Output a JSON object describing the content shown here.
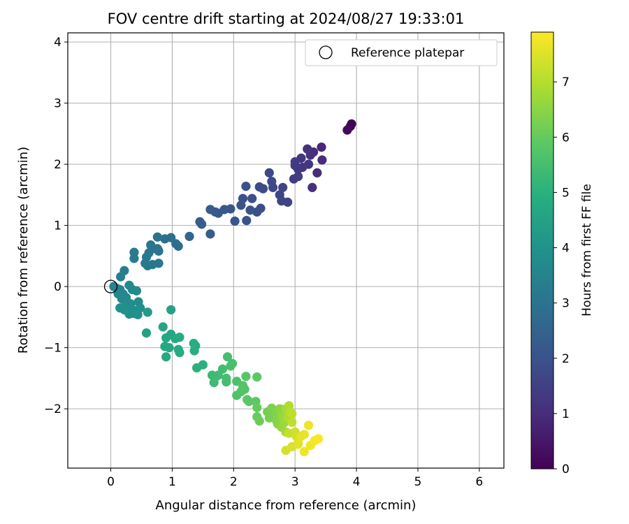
{
  "chart_data": {
    "type": "scatter",
    "title": "FOV centre drift starting at 2024/08/27 19:33:01",
    "xlabel": "Angular distance from reference (arcmin)",
    "ylabel": "Rotation from reference (arcmin)",
    "xlim": [
      -0.7,
      6.4
    ],
    "ylim": [
      -2.97,
      4.15
    ],
    "xticks": [
      0,
      1,
      2,
      3,
      4,
      5,
      6
    ],
    "yticks": [
      -2,
      -1,
      0,
      1,
      2,
      3,
      4
    ],
    "grid": true,
    "legend": {
      "placement": "top-right",
      "entries": [
        "Reference platepar"
      ]
    },
    "colorbar": {
      "label": "Hours from first FF file",
      "range": [
        0,
        7.9
      ],
      "ticks": [
        0,
        1,
        2,
        3,
        4,
        5,
        6,
        7
      ],
      "colormap": "viridis"
    },
    "reference_point": {
      "x": 0,
      "y": 0,
      "label": "Reference platepar"
    },
    "points": [
      [
        3.92,
        2.66,
        0.05
      ],
      [
        3.9,
        2.62,
        0.1
      ],
      [
        3.85,
        2.56,
        0.2
      ],
      [
        3.43,
        2.28,
        0.9
      ],
      [
        3.3,
        2.2,
        1.0
      ],
      [
        3.44,
        2.07,
        1.0
      ],
      [
        3.36,
        1.86,
        1.0
      ],
      [
        3.2,
        2.25,
        1.1
      ],
      [
        3.28,
        1.62,
        1.1
      ],
      [
        3.22,
        2.0,
        1.2
      ],
      [
        3.1,
        2.1,
        1.2
      ],
      [
        3.25,
        2.15,
        1.15
      ],
      [
        3.05,
        1.92,
        1.3
      ],
      [
        3.0,
        1.98,
        1.3
      ],
      [
        3.0,
        2.04,
        1.35
      ],
      [
        3.05,
        1.8,
        1.4
      ],
      [
        2.98,
        1.76,
        1.4
      ],
      [
        3.12,
        1.95,
        1.25
      ],
      [
        2.88,
        1.38,
        1.6
      ],
      [
        2.78,
        1.4,
        1.6
      ],
      [
        2.75,
        1.5,
        1.65
      ],
      [
        2.8,
        1.62,
        1.65
      ],
      [
        2.64,
        1.62,
        1.7
      ],
      [
        2.58,
        1.86,
        1.7
      ],
      [
        2.62,
        1.72,
        1.75
      ],
      [
        2.42,
        1.63,
        1.8
      ],
      [
        2.48,
        1.6,
        1.8
      ],
      [
        2.44,
        1.28,
        1.85
      ],
      [
        2.38,
        1.22,
        1.9
      ],
      [
        2.3,
        1.44,
        1.9
      ],
      [
        2.2,
        1.64,
        1.95
      ],
      [
        2.15,
        1.44,
        1.95
      ],
      [
        2.12,
        1.33,
        2.0
      ],
      [
        2.21,
        1.08,
        2.0
      ],
      [
        2.27,
        1.25,
        2.0
      ],
      [
        2.02,
        1.07,
        2.1
      ],
      [
        1.95,
        1.27,
        2.1
      ],
      [
        1.85,
        1.26,
        2.15
      ],
      [
        1.75,
        1.2,
        2.2
      ],
      [
        1.7,
        1.22,
        2.2
      ],
      [
        1.62,
        1.26,
        2.25
      ],
      [
        1.62,
        0.86,
        2.3
      ],
      [
        1.45,
        1.06,
        2.3
      ],
      [
        1.48,
        1.02,
        2.35
      ],
      [
        1.28,
        0.82,
        2.6
      ],
      [
        1.1,
        0.66,
        2.8
      ],
      [
        1.06,
        0.7,
        2.8
      ],
      [
        0.98,
        0.8,
        2.85
      ],
      [
        0.88,
        0.78,
        2.9
      ],
      [
        0.76,
        0.81,
        2.95
      ],
      [
        0.76,
        0.62,
        3.0
      ],
      [
        0.78,
        0.58,
        3.0
      ],
      [
        0.68,
        0.62,
        3.05
      ],
      [
        0.65,
        0.68,
        3.05
      ],
      [
        0.62,
        0.55,
        3.1
      ],
      [
        0.58,
        0.48,
        3.15
      ],
      [
        0.56,
        0.38,
        3.2
      ],
      [
        0.6,
        0.34,
        3.2
      ],
      [
        0.68,
        0.36,
        3.2
      ],
      [
        0.78,
        0.38,
        3.2
      ],
      [
        0.38,
        0.56,
        3.25
      ],
      [
        0.38,
        0.46,
        3.25
      ],
      [
        0.22,
        0.26,
        3.3
      ],
      [
        0.16,
        0.16,
        3.35
      ],
      [
        0.05,
        0.0,
        3.5
      ],
      [
        0.1,
        -0.03,
        3.55
      ],
      [
        0.15,
        -0.05,
        3.55
      ],
      [
        0.12,
        -0.12,
        3.6
      ],
      [
        0.2,
        -0.12,
        3.6
      ],
      [
        0.25,
        -0.18,
        3.65
      ],
      [
        0.18,
        -0.2,
        3.65
      ],
      [
        0.3,
        0.02,
        3.7
      ],
      [
        0.35,
        -0.05,
        3.7
      ],
      [
        0.42,
        -0.07,
        3.75
      ],
      [
        0.45,
        -0.25,
        3.75
      ],
      [
        0.32,
        -0.28,
        3.8
      ],
      [
        0.25,
        -0.3,
        3.8
      ],
      [
        0.36,
        -0.38,
        3.85
      ],
      [
        0.42,
        -0.4,
        3.85
      ],
      [
        0.48,
        -0.35,
        3.9
      ],
      [
        0.3,
        -0.45,
        3.9
      ],
      [
        0.38,
        -0.44,
        3.9
      ],
      [
        0.15,
        -0.35,
        3.95
      ],
      [
        0.22,
        -0.38,
        3.95
      ],
      [
        0.44,
        -0.46,
        4.0
      ],
      [
        0.6,
        -0.42,
        4.3
      ],
      [
        0.98,
        -0.38,
        4.5
      ],
      [
        0.58,
        -0.76,
        4.5
      ],
      [
        0.85,
        -0.66,
        4.6
      ],
      [
        0.98,
        -0.78,
        4.65
      ],
      [
        0.9,
        -0.84,
        4.7
      ],
      [
        0.88,
        -0.98,
        4.7
      ],
      [
        0.95,
        -1.0,
        4.7
      ],
      [
        0.9,
        -1.15,
        4.75
      ],
      [
        1.05,
        -0.85,
        4.75
      ],
      [
        1.12,
        -0.83,
        4.8
      ],
      [
        1.12,
        -1.08,
        4.8
      ],
      [
        1.1,
        -1.03,
        4.85
      ],
      [
        1.35,
        -0.93,
        4.9
      ],
      [
        1.38,
        -0.97,
        4.9
      ],
      [
        1.36,
        -1.05,
        4.95
      ],
      [
        1.4,
        -1.33,
        5.0
      ],
      [
        1.5,
        -1.28,
        5.0
      ],
      [
        1.65,
        -1.45,
        5.3
      ],
      [
        1.68,
        -1.57,
        5.35
      ],
      [
        1.72,
        -1.47,
        5.4
      ],
      [
        1.75,
        -1.45,
        5.4
      ],
      [
        1.82,
        -1.35,
        5.45
      ],
      [
        1.88,
        -1.5,
        5.5
      ],
      [
        1.88,
        -1.56,
        5.5
      ],
      [
        1.9,
        -1.15,
        5.5
      ],
      [
        1.95,
        -1.3,
        5.55
      ],
      [
        1.98,
        -1.26,
        5.55
      ],
      [
        2.05,
        -1.55,
        5.6
      ],
      [
        2.05,
        -1.78,
        5.65
      ],
      [
        2.12,
        -1.72,
        5.7
      ],
      [
        2.15,
        -1.62,
        5.75
      ],
      [
        2.18,
        -1.68,
        5.75
      ],
      [
        2.2,
        -1.47,
        5.8
      ],
      [
        2.22,
        -1.85,
        5.85
      ],
      [
        2.25,
        -1.88,
        5.85
      ],
      [
        2.38,
        -1.48,
        5.9
      ],
      [
        2.36,
        -1.88,
        5.9
      ],
      [
        2.38,
        -1.98,
        6.0
      ],
      [
        2.38,
        -2.13,
        6.05
      ],
      [
        2.42,
        -2.2,
        6.1
      ],
      [
        2.55,
        -2.05,
        6.2
      ],
      [
        2.58,
        -2.15,
        6.25
      ],
      [
        2.62,
        -1.99,
        6.3
      ],
      [
        2.68,
        -2.06,
        6.35
      ],
      [
        2.7,
        -2.2,
        6.4
      ],
      [
        2.72,
        -2.25,
        6.45
      ],
      [
        2.75,
        -2.0,
        6.5
      ],
      [
        2.78,
        -2.1,
        6.55
      ],
      [
        2.78,
        -2.3,
        6.6
      ],
      [
        2.8,
        -2.14,
        6.65
      ],
      [
        2.82,
        -2.23,
        6.7
      ],
      [
        2.85,
        -2.0,
        6.75
      ],
      [
        2.85,
        -2.38,
        6.8
      ],
      [
        2.88,
        -2.05,
        6.85
      ],
      [
        2.88,
        -2.15,
        6.9
      ],
      [
        2.9,
        -1.95,
        6.95
      ],
      [
        2.92,
        -2.05,
        7.0
      ],
      [
        2.95,
        -2.08,
        7.1
      ],
      [
        2.95,
        -2.22,
        7.15
      ],
      [
        2.9,
        -2.4,
        7.2
      ],
      [
        3.0,
        -2.38,
        7.3
      ],
      [
        3.02,
        -2.45,
        7.35
      ],
      [
        2.85,
        -2.68,
        7.4
      ],
      [
        2.95,
        -2.62,
        7.45
      ],
      [
        3.05,
        -2.55,
        7.5
      ],
      [
        3.05,
        -2.58,
        7.55
      ],
      [
        3.1,
        -2.45,
        7.6
      ],
      [
        3.15,
        -2.42,
        7.65
      ],
      [
        3.15,
        -2.7,
        7.7
      ],
      [
        3.22,
        -2.27,
        7.7
      ],
      [
        3.25,
        -2.6,
        7.75
      ],
      [
        3.32,
        -2.52,
        7.8
      ],
      [
        3.38,
        -2.49,
        7.85
      ]
    ]
  }
}
